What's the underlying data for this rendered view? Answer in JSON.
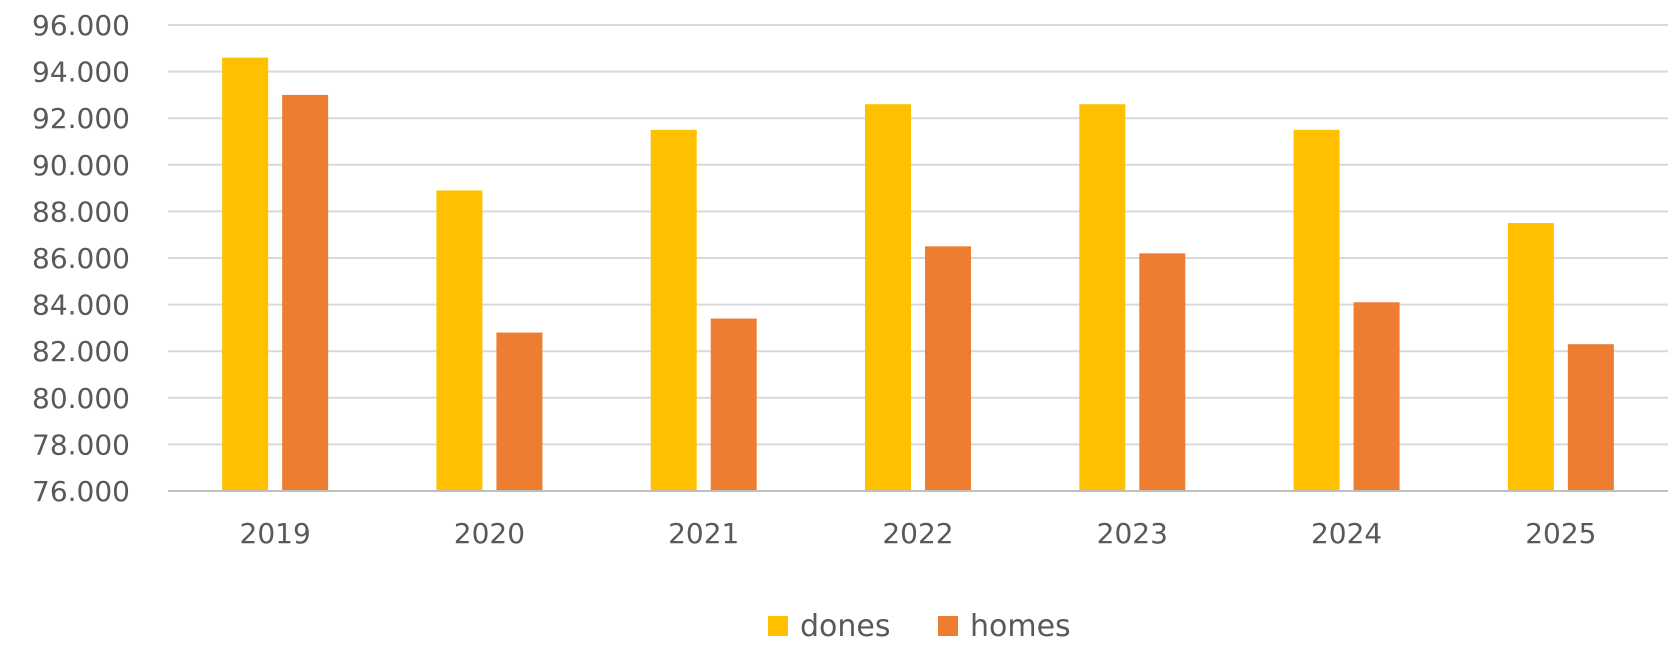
{
  "chart_data": {
    "type": "bar",
    "title": "",
    "xlabel": "",
    "ylabel": "",
    "categories": [
      "2019",
      "2020",
      "2021",
      "2022",
      "2023",
      "2024",
      "2025"
    ],
    "series": [
      {
        "name": "dones",
        "color": "#FFC000",
        "values": [
          94600,
          88900,
          91500,
          92600,
          92600,
          91500,
          87500
        ]
      },
      {
        "name": "homes",
        "color": "#ED7D31",
        "values": [
          93000,
          82800,
          83400,
          86500,
          86200,
          84100,
          82300
        ]
      }
    ],
    "ylim": [
      76000,
      96000
    ],
    "yticks": [
      76000,
      78000,
      80000,
      82000,
      84000,
      86000,
      88000,
      90000,
      92000,
      94000,
      96000
    ],
    "ytick_labels": [
      "76.000",
      "78.000",
      "80.000",
      "82.000",
      "84.000",
      "86.000",
      "88.000",
      "90.000",
      "92.000",
      "94.000",
      "96.000"
    ],
    "grid": true,
    "legend_position": "bottom-center"
  }
}
